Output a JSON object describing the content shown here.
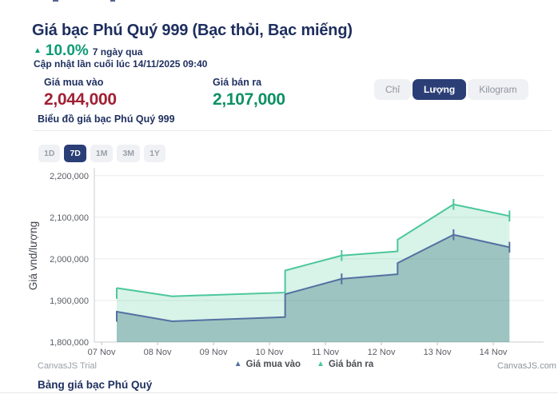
{
  "header": {
    "title": "Giá bạc Phú Quý 999 (Bạc thỏi, Bạc miếng)",
    "change_arrow": "▲",
    "change_percent": "10.0%",
    "change_period": "7 ngày qua",
    "last_updated": "Cập nhật lần cuối lúc 14/11/2025 09:40"
  },
  "prices": {
    "buy_label": "Giá mua vào",
    "buy_value": "2,044,000",
    "sell_label": "Giá bán ra",
    "sell_value": "2,107,000"
  },
  "unit_toggle": {
    "options": [
      {
        "label": "Chỉ",
        "selected": false
      },
      {
        "label": "Lượng",
        "selected": true
      },
      {
        "label": "Kilogram",
        "selected": false
      }
    ]
  },
  "chart_header": "Biểu đồ giá bạc Phú Quý 999",
  "range_buttons": [
    {
      "label": "1D",
      "selected": false
    },
    {
      "label": "7D",
      "selected": true
    },
    {
      "label": "1M",
      "selected": false
    },
    {
      "label": "3M",
      "selected": false
    },
    {
      "label": "1Y",
      "selected": false
    }
  ],
  "chart_data": {
    "type": "area",
    "title": "Biểu đồ giá bạc Phú Quý 999",
    "ylabel": "Giá vnd/lượng",
    "x_unit": "date (Nov 2025)",
    "xlim": [
      -0.13,
      7.9
    ],
    "ylim": [
      1800000,
      2215000
    ],
    "grid": "horizontal",
    "legend_position": "bottom",
    "marker_half": 13000,
    "y_ticks": [
      {
        "value": 1800000,
        "label": "1,800,000"
      },
      {
        "value": 1900000,
        "label": "1,900,000"
      },
      {
        "value": 2000000,
        "label": "2,000,000"
      },
      {
        "value": 2100000,
        "label": "2,100,000"
      },
      {
        "value": 2200000,
        "label": "2,200,000"
      }
    ],
    "x_ticks": [
      {
        "day": 0,
        "label": "07 Nov"
      },
      {
        "day": 1,
        "label": "08 Nov"
      },
      {
        "day": 2,
        "label": "09 Nov"
      },
      {
        "day": 3,
        "label": "10 Nov"
      },
      {
        "day": 4,
        "label": "11 Nov"
      },
      {
        "day": 5,
        "label": "12 Nov"
      },
      {
        "day": 6,
        "label": "13 Nov"
      },
      {
        "day": 7,
        "label": "14 Nov"
      }
    ],
    "series": [
      {
        "name": "Giá mua vào",
        "color": "#5470a2",
        "fill": "rgba(70,125,132,0.40)",
        "points": [
          [
            0.27,
            1873000
          ],
          [
            1.26,
            1850000
          ],
          [
            3.28,
            1860000
          ],
          [
            3.28,
            1915000
          ],
          [
            4.29,
            1952000
          ],
          [
            5.29,
            1963000
          ],
          [
            5.29,
            1990000
          ],
          [
            6.29,
            2058000
          ],
          [
            7.29,
            2028000
          ]
        ],
        "markers": [
          [
            0.27,
            1862000
          ],
          [
            4.29,
            1952000
          ],
          [
            6.29,
            2058000
          ],
          [
            7.29,
            2028000
          ]
        ]
      },
      {
        "name": "Giá bán ra",
        "color": "#4bc79b",
        "fill": "rgba(77,199,152,0.22)",
        "points": [
          [
            0.27,
            1930000
          ],
          [
            1.26,
            1910000
          ],
          [
            3.28,
            1919000
          ],
          [
            3.28,
            1972000
          ],
          [
            4.29,
            2008000
          ],
          [
            5.29,
            2018000
          ],
          [
            5.29,
            2046000
          ],
          [
            6.29,
            2131000
          ],
          [
            7.29,
            2103000
          ]
        ],
        "markers": [
          [
            0.27,
            1917000
          ],
          [
            4.29,
            2008000
          ],
          [
            6.29,
            2131000
          ],
          [
            7.29,
            2103000
          ]
        ]
      }
    ]
  },
  "legend": [
    {
      "marker": "▲",
      "label": "Giá mua vào",
      "color": "#5470a2"
    },
    {
      "marker": "▲",
      "label": "Giá bán ra",
      "color": "#4bc79b"
    }
  ],
  "footer": {
    "trial": "CanvasJS Trial",
    "brand": "CanvasJS.com",
    "table_header": "Bảng giá bạc Phú Quý"
  },
  "colors": {
    "navy_text": "#1d2e5e",
    "teal_change": "#0d9b76",
    "buy_red": "#a02034",
    "sell_green": "#0e9065",
    "selected_button_navy": "#2b3f76",
    "chip_bg": "#f0f1f4",
    "line_buy": "#5470a2",
    "line_sell": "#4bc79b"
  }
}
